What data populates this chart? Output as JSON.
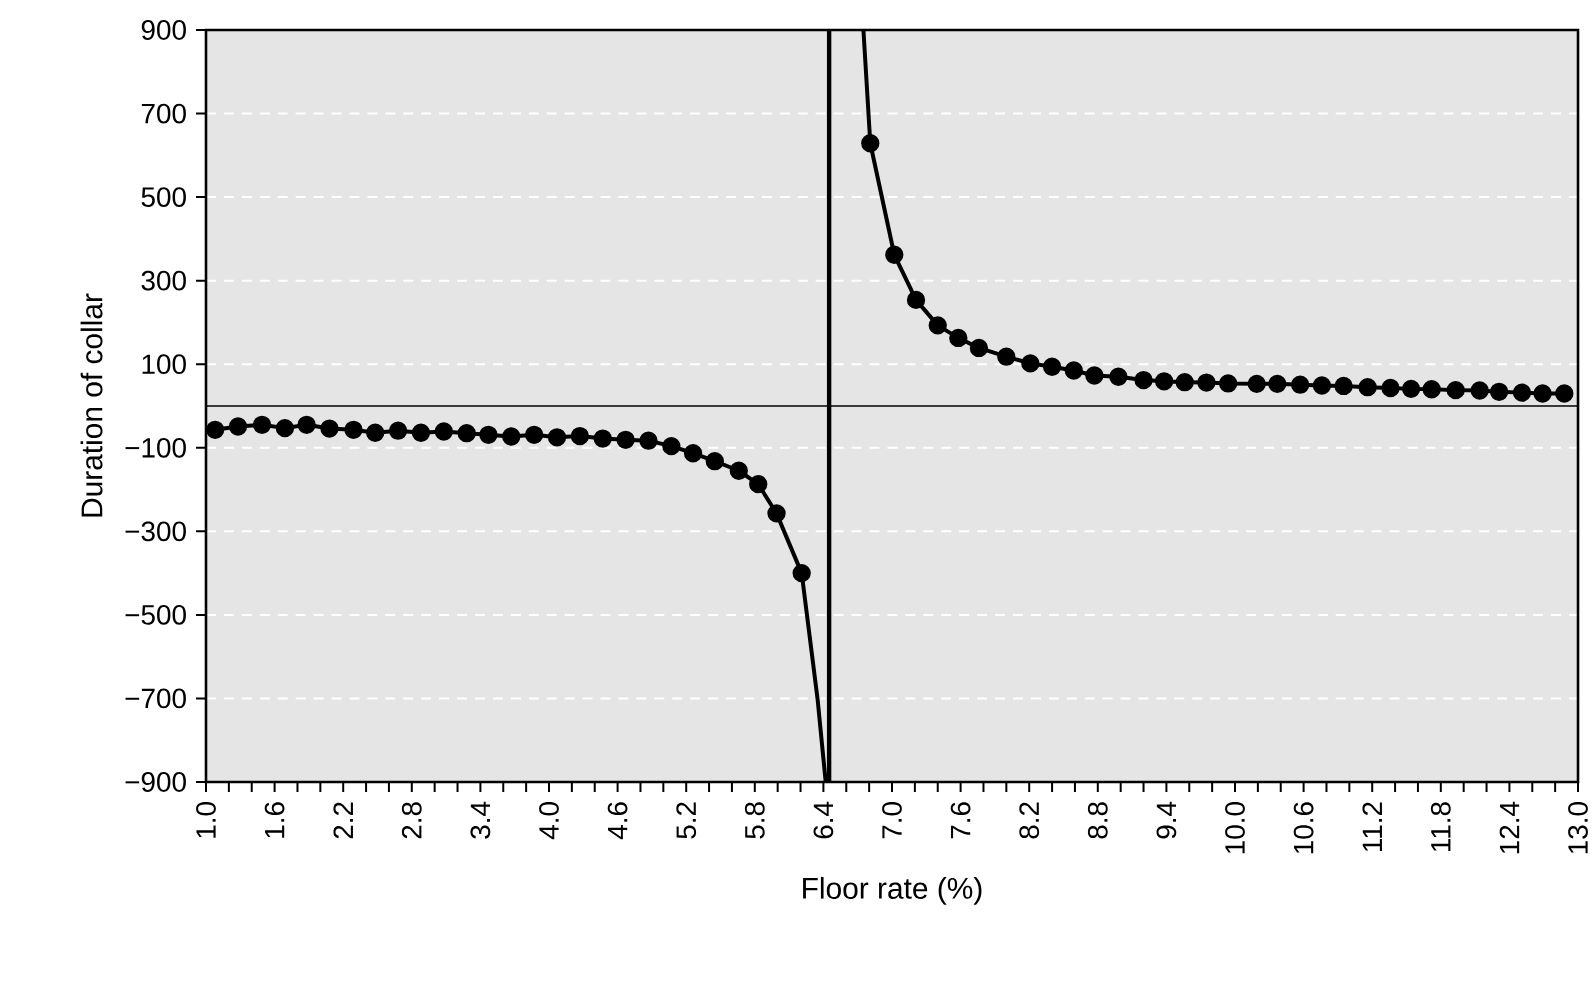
{
  "chart_data": {
    "type": "line",
    "xlabel": "Floor rate (%)",
    "ylabel": "Duration of collar",
    "xlim": [
      1.0,
      13.0
    ],
    "ylim": [
      -900,
      900
    ],
    "xticks": [
      {
        "value": 1.0,
        "label": "1.0"
      },
      {
        "value": 1.2,
        "label": null
      },
      {
        "value": 1.4,
        "label": null
      },
      {
        "value": 1.6,
        "label": "1.6"
      },
      {
        "value": 1.8,
        "label": null
      },
      {
        "value": 2.0,
        "label": null
      },
      {
        "value": 2.2,
        "label": "2.2"
      },
      {
        "value": 2.4,
        "label": null
      },
      {
        "value": 2.6,
        "label": null
      },
      {
        "value": 2.8,
        "label": "2.8"
      },
      {
        "value": 3.0,
        "label": null
      },
      {
        "value": 3.2,
        "label": null
      },
      {
        "value": 3.4,
        "label": "3.4"
      },
      {
        "value": 3.6,
        "label": null
      },
      {
        "value": 3.8,
        "label": null
      },
      {
        "value": 4.0,
        "label": "4.0"
      },
      {
        "value": 4.2,
        "label": null
      },
      {
        "value": 4.4,
        "label": null
      },
      {
        "value": 4.6,
        "label": "4.6"
      },
      {
        "value": 4.8,
        "label": null
      },
      {
        "value": 5.0,
        "label": null
      },
      {
        "value": 5.2,
        "label": "5.2"
      },
      {
        "value": 5.4,
        "label": null
      },
      {
        "value": 5.6,
        "label": null
      },
      {
        "value": 5.8,
        "label": "5.8"
      },
      {
        "value": 6.0,
        "label": null
      },
      {
        "value": 6.2,
        "label": null
      },
      {
        "value": 6.4,
        "label": "6.4"
      },
      {
        "value": 6.6,
        "label": null
      },
      {
        "value": 6.8,
        "label": null
      },
      {
        "value": 7.0,
        "label": "7.0"
      },
      {
        "value": 7.2,
        "label": null
      },
      {
        "value": 7.4,
        "label": null
      },
      {
        "value": 7.6,
        "label": "7.6"
      },
      {
        "value": 7.8,
        "label": null
      },
      {
        "value": 8.0,
        "label": null
      },
      {
        "value": 8.2,
        "label": "8.2"
      },
      {
        "value": 8.4,
        "label": null
      },
      {
        "value": 8.6,
        "label": null
      },
      {
        "value": 8.8,
        "label": "8.8"
      },
      {
        "value": 9.0,
        "label": null
      },
      {
        "value": 9.2,
        "label": null
      },
      {
        "value": 9.4,
        "label": "9.4"
      },
      {
        "value": 9.6,
        "label": null
      },
      {
        "value": 9.8,
        "label": null
      },
      {
        "value": 10.0,
        "label": "10.0"
      },
      {
        "value": 10.2,
        "label": null
      },
      {
        "value": 10.4,
        "label": null
      },
      {
        "value": 10.6,
        "label": "10.6"
      },
      {
        "value": 10.8,
        "label": null
      },
      {
        "value": 11.0,
        "label": null
      },
      {
        "value": 11.2,
        "label": "11.2"
      },
      {
        "value": 11.4,
        "label": null
      },
      {
        "value": 11.6,
        "label": null
      },
      {
        "value": 11.8,
        "label": "11.8"
      },
      {
        "value": 12.0,
        "label": null
      },
      {
        "value": 12.2,
        "label": null
      },
      {
        "value": 12.4,
        "label": "12.4"
      },
      {
        "value": 12.6,
        "label": null
      },
      {
        "value": 12.8,
        "label": null
      },
      {
        "value": 13.0,
        "label": "13.0"
      }
    ],
    "yticks": [
      900,
      700,
      500,
      300,
      100,
      {
        "value": -100,
        "label": "−100"
      },
      {
        "value": -300,
        "label": "−300"
      },
      {
        "value": -500,
        "label": "−500"
      },
      {
        "value": -700,
        "label": "−700"
      },
      {
        "value": -900,
        "label": "−900"
      }
    ],
    "grid": "y",
    "line_style": "solid",
    "series": [
      {
        "marker": "none",
        "color": "#000000",
        "x": [
          1.08,
          1.28,
          1.49,
          1.69,
          1.88,
          2.08,
          2.29,
          2.48,
          2.68,
          2.88,
          3.08,
          3.28,
          3.47,
          3.67,
          3.87,
          4.07,
          4.27,
          4.47,
          4.67,
          4.87,
          5.07,
          5.26,
          5.45,
          5.66,
          5.83,
          5.99,
          6.21,
          6.35,
          6.42
        ],
        "values": [
          -57,
          -49,
          -45,
          -53,
          -45,
          -54,
          -57,
          -64,
          -59,
          -64,
          -61,
          -65,
          -69,
          -73,
          -69,
          -75,
          -72,
          -78,
          -81,
          -83,
          -96,
          -113,
          -132,
          -155,
          -187,
          -257,
          -400,
          -704,
          -900
        ]
      },
      {
        "marker": "none",
        "color": "#000000",
        "x": [
          6.75,
          6.81,
          7.02,
          7.21,
          7.4,
          7.58,
          7.76,
          8.0,
          8.21,
          8.4,
          8.59,
          8.77,
          8.98,
          9.2,
          9.38,
          9.56,
          9.75,
          9.94,
          10.19,
          10.37,
          10.57,
          10.76,
          10.95,
          11.16,
          11.36,
          11.54,
          11.72,
          11.93,
          12.14,
          12.31,
          12.51,
          12.69,
          12.88
        ],
        "values": [
          900,
          629,
          362,
          254,
          193,
          163,
          139,
          118,
          102,
          94,
          85,
          73,
          70,
          62,
          59,
          57,
          56,
          54,
          53,
          53,
          51,
          49,
          48,
          45,
          43,
          41,
          40,
          38,
          37,
          34,
          32,
          30,
          30
        ]
      },
      {
        "type": "scatter",
        "marker": "circle",
        "color": "#000000",
        "x": [
          1.08,
          1.28,
          1.49,
          1.69,
          1.88,
          2.08,
          2.29,
          2.48,
          2.68,
          2.88,
          3.08,
          3.28,
          3.47,
          3.67,
          3.87,
          4.07,
          4.27,
          4.47,
          4.67,
          4.87,
          5.07,
          5.26,
          5.45,
          5.66,
          5.83,
          5.99,
          6.21,
          6.81,
          7.02,
          7.21,
          7.4,
          7.58,
          7.76,
          8.0,
          8.21,
          8.4,
          8.59,
          8.77,
          8.98,
          9.2,
          9.38,
          9.56,
          9.75,
          9.94,
          10.19,
          10.37,
          10.57,
          10.76,
          10.95,
          11.16,
          11.36,
          11.54,
          11.72,
          11.93,
          12.14,
          12.31,
          12.51,
          12.69,
          12.88
        ],
        "values": [
          -57,
          -49,
          -45,
          -53,
          -45,
          -54,
          -57,
          -64,
          -59,
          -64,
          -61,
          -65,
          -69,
          -73,
          -69,
          -75,
          -72,
          -78,
          -81,
          -83,
          -96,
          -113,
          -132,
          -155,
          -187,
          -257,
          -400,
          629,
          362,
          254,
          193,
          163,
          139,
          118,
          102,
          94,
          85,
          73,
          70,
          62,
          59,
          57,
          56,
          54,
          53,
          53,
          51,
          49,
          48,
          45,
          43,
          41,
          40,
          38,
          37,
          34,
          32,
          30,
          30
        ]
      }
    ],
    "ref_lines": [
      {
        "axis": "y",
        "value": 0,
        "color": "#000000"
      },
      {
        "axis": "x",
        "value": 6.45,
        "color": "#000000"
      }
    ]
  }
}
